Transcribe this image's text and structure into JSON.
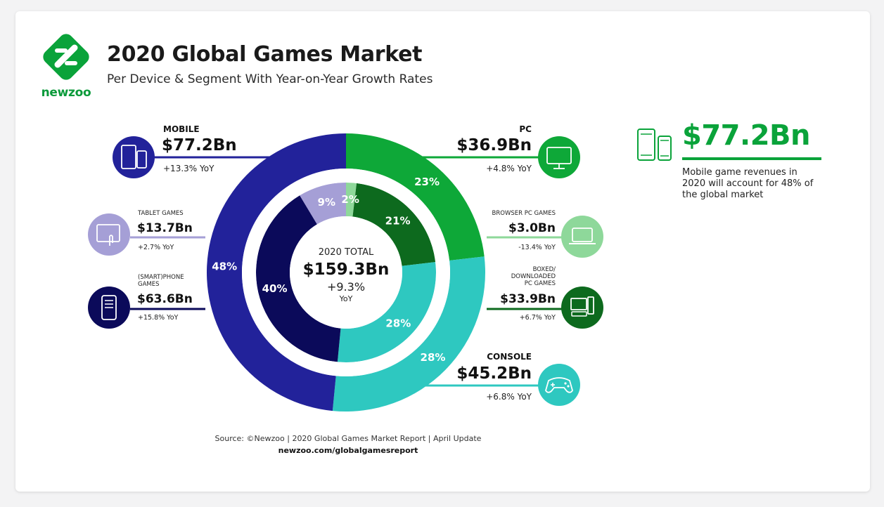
{
  "header": {
    "brand": "newzoo",
    "title": "2020 Global Games Market",
    "subtitle": "Per Device & Segment With Year-on-Year Growth Rates"
  },
  "colors": {
    "mobile": "#22229a",
    "tablet": "#a59fd6",
    "smartphone": "#0b0a5a",
    "pc": "#0ea838",
    "browser_pc": "#8ed89a",
    "boxed_pc": "#0d6a1e",
    "console": "#2ec8c0",
    "brand_green": "#0aa33a"
  },
  "chart_data": {
    "type": "pie",
    "center": {
      "label": "2020 TOTAL",
      "total": "$159.3Bn",
      "growth": "+9.3%",
      "growth_label": "YoY"
    },
    "outer_ring": [
      {
        "name": "MOBILE",
        "value": 77.2,
        "value_label": "$77.2Bn",
        "share": 48,
        "share_label": "48%",
        "yoy": "+13.3% YoY"
      },
      {
        "name": "PC",
        "value": 36.9,
        "value_label": "$36.9Bn",
        "share": 23,
        "share_label": "23%",
        "yoy": "+4.8% YoY"
      },
      {
        "name": "CONSOLE",
        "value": 45.2,
        "value_label": "$45.2Bn",
        "share": 28,
        "share_label": "28%",
        "yoy": "+6.8% YoY"
      }
    ],
    "inner_ring": [
      {
        "name": "TABLET GAMES",
        "value": 13.7,
        "value_label": "$13.7Bn",
        "share": 9,
        "share_label": "9%",
        "yoy": "+2.7% YoY"
      },
      {
        "name": "BROWSER PC GAMES",
        "value": 3.0,
        "value_label": "$3.0Bn",
        "share": 2,
        "share_label": "2%",
        "yoy": "-13.4% YoY"
      },
      {
        "name": "BOXED/ DOWNLOADED PC GAMES",
        "value": 33.9,
        "value_label": "$33.9Bn",
        "share": 21,
        "share_label": "21%",
        "yoy": "+6.7% YoY"
      },
      {
        "name": "CONSOLE",
        "value": 45.2,
        "value_label": "$45.2Bn",
        "share": 28,
        "share_label": "28%",
        "yoy": "+6.8% YoY"
      },
      {
        "name": "(SMART)PHONE GAMES",
        "value": 63.6,
        "value_label": "$63.6Bn",
        "share": 40,
        "share_label": "40%",
        "yoy": "+15.8% YoY"
      }
    ]
  },
  "labels": {
    "mobile_name": "MOBILE",
    "tablet_name": "TABLET GAMES",
    "phone_name_1": "(SMART)PHONE",
    "phone_name_2": "GAMES",
    "pc_name": "PC",
    "browser_name": "BROWSER PC GAMES",
    "boxed_name_1": "BOXED/",
    "boxed_name_2": "DOWNLOADED",
    "boxed_name_3": "PC GAMES",
    "console_name": "CONSOLE"
  },
  "highlight": {
    "value": "$77.2Bn",
    "text": "Mobile game revenues in 2020 will account for 48% of the global market"
  },
  "footer": {
    "source": "Source: ©Newzoo | 2020 Global Games Market Report | April Update",
    "url": "newzoo.com/globalgamesreport"
  }
}
